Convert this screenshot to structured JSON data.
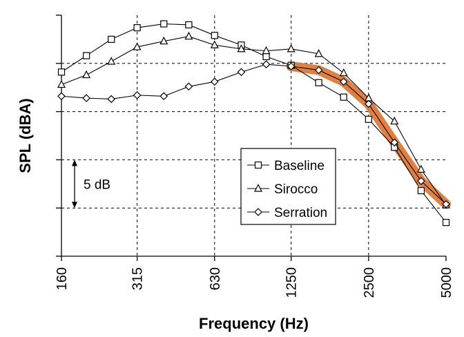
{
  "chart_data": {
    "type": "line",
    "title": "",
    "xlabel": "Frequency (Hz)",
    "ylabel": "SPL (dBA)",
    "x_scale": "log",
    "xlim": [
      160,
      5000
    ],
    "x_tick_labels": [
      "160",
      "315",
      "630",
      "1250",
      "2500",
      "5000"
    ],
    "y_units": "dB relative (grid spacing 5 dB)",
    "ylim": [
      0,
      25
    ],
    "grid": true,
    "legend_position": "lower-right",
    "x": [
      160,
      200,
      250,
      315,
      400,
      500,
      630,
      800,
      1000,
      1250,
      1600,
      2000,
      2500,
      3150,
      4000,
      5000
    ],
    "series": [
      {
        "name": "Baseline",
        "marker": "square",
        "color": "#000000",
        "values": [
          19.1,
          20.8,
          22.5,
          23.7,
          24.1,
          24.0,
          22.9,
          21.9,
          20.7,
          19.8,
          18.0,
          16.5,
          14.2,
          11.3,
          6.8,
          3.5
        ]
      },
      {
        "name": "Sirocco",
        "marker": "triangle",
        "color": "#000000",
        "values": [
          17.8,
          18.8,
          20.2,
          21.7,
          22.3,
          22.8,
          21.9,
          21.5,
          21.3,
          21.5,
          21.0,
          19.0,
          16.4,
          14.0,
          9.0,
          5.3
        ]
      },
      {
        "name": "Serration",
        "marker": "diamond",
        "color": "#000000",
        "values": [
          16.6,
          16.4,
          16.3,
          16.7,
          16.6,
          17.6,
          18.1,
          19.1,
          19.9,
          19.7,
          19.3,
          18.1,
          15.8,
          11.8,
          7.8,
          5.4
        ]
      }
    ],
    "highlight": {
      "series": "Serration",
      "from_x": 1250,
      "to_x": 5000,
      "color": "#e07a35"
    },
    "annotation": {
      "label": "5 dB"
    }
  }
}
